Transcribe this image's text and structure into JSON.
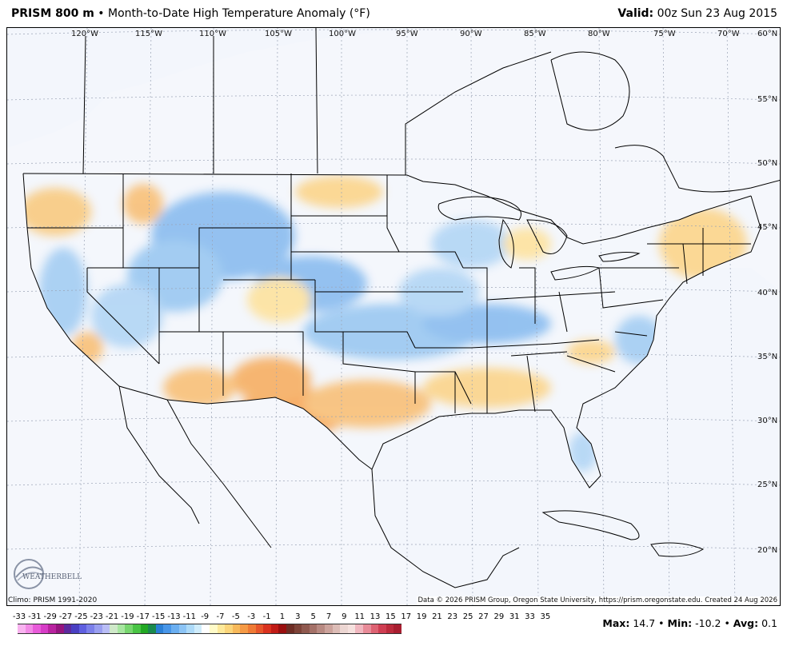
{
  "header": {
    "product": "PRISM 800 m",
    "bullet": "•",
    "description": "Month-to-Date High Temperature Anomaly (°F)",
    "valid_label": "Valid:",
    "valid_time": "00z Sun 23 Aug 2015"
  },
  "map": {
    "longitude_labels": [
      "120°W",
      "115°W",
      "110°W",
      "105°W",
      "100°W",
      "95°W",
      "90°W",
      "85°W",
      "80°W",
      "75°W",
      "70°W"
    ],
    "latitude_labels": [
      "60°N",
      "55°N",
      "50°N",
      "45°N",
      "40°N",
      "35°N",
      "30°N",
      "25°N",
      "20°N"
    ],
    "ocean_color": "#f3f6fc",
    "warm_color": "#f7b56a",
    "cool_color": "#9fcaf2"
  },
  "logo": {
    "text": "WEATHERBELL"
  },
  "footer": {
    "climo": "Climo: PRISM 1991-2020",
    "credit": "Data © 2026 PRISM Group, Oregon State University, https://prism.oregonstate.edu. Created 24 Aug 2026"
  },
  "colorbar": {
    "labels": [
      "-33",
      "-31",
      "-29",
      "-27",
      "-25",
      "-23",
      "-21",
      "-19",
      "-17",
      "-15",
      "-13",
      "-11",
      "-9",
      "-7",
      "-5",
      "-3",
      "-1",
      "1",
      "3",
      "5",
      "7",
      "9",
      "11",
      "13",
      "15",
      "17",
      "19",
      "21",
      "23",
      "25",
      "27",
      "29",
      "31",
      "33",
      "35"
    ],
    "colors": [
      "#f9b3f0",
      "#f28ae6",
      "#e85bd9",
      "#d63cc6",
      "#b8239f",
      "#95157f",
      "#5c2a9e",
      "#4a3fc2",
      "#5f5fe0",
      "#7c80ea",
      "#9a9ff0",
      "#b9bdf5",
      "#cfe9c9",
      "#a7e6a0",
      "#77d66e",
      "#49c444",
      "#22a823",
      "#1a8a4e",
      "#2a7fd6",
      "#4896e8",
      "#6aaef0",
      "#8cc4f5",
      "#addaf8",
      "#cfecfb",
      "#ffffff",
      "#fffbc8",
      "#fde99a",
      "#fbd57a",
      "#f7b95a",
      "#f59a45",
      "#ef7a35",
      "#e6552a",
      "#d9321f",
      "#c01b16",
      "#9a0f0f",
      "#6e2d24",
      "#7d4338",
      "#8f594f",
      "#a47168",
      "#b88a82",
      "#cca39c",
      "#dcbcb6",
      "#ecd6d2",
      "#f5e1de",
      "#f0b7bf",
      "#e88b98",
      "#dd6272",
      "#cf3e52",
      "#bb2b3c",
      "#a81e30"
    ]
  },
  "stats": {
    "max_label": "Max:",
    "max": "14.7",
    "min_label": "Min:",
    "min": "-10.2",
    "avg_label": "Avg:",
    "avg": "0.1",
    "sep": "•"
  }
}
